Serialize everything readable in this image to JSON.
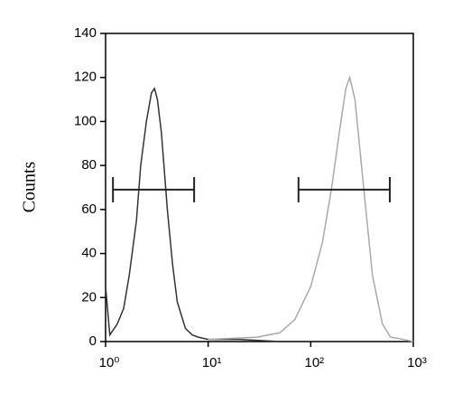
{
  "chart_data": {
    "type": "line",
    "ylabel": "Counts",
    "xlog": true,
    "xlim": [
      1,
      1000
    ],
    "ylim": [
      0,
      140
    ],
    "xticks": [
      {
        "value": 1,
        "label": "10⁰"
      },
      {
        "value": 10,
        "label": "10¹"
      },
      {
        "value": 100,
        "label": "10²"
      },
      {
        "value": 1000,
        "label": "10³"
      }
    ],
    "yticks": [
      0,
      20,
      40,
      60,
      80,
      100,
      120,
      140
    ],
    "series": [
      {
        "color": "#333333",
        "x": [
          1,
          1.1,
          1.3,
          1.5,
          1.7,
          2,
          2.2,
          2.5,
          2.8,
          3,
          3.2,
          3.5,
          4,
          4.5,
          5,
          6,
          7,
          8,
          10,
          20,
          50
        ],
        "values": [
          25,
          3,
          8,
          15,
          30,
          55,
          80,
          100,
          113,
          115,
          110,
          95,
          60,
          35,
          18,
          6,
          3,
          2,
          1,
          1,
          0
        ]
      },
      {
        "color": "#a8a8a8",
        "x": [
          10,
          30,
          50,
          70,
          100,
          130,
          160,
          190,
          220,
          240,
          270,
          320,
          400,
          500,
          600,
          800,
          1000
        ],
        "values": [
          1,
          2,
          4,
          10,
          25,
          45,
          70,
          95,
          115,
          120,
          110,
          75,
          30,
          8,
          2,
          1,
          0
        ]
      }
    ],
    "gates": [
      {
        "x": [
          1.18,
          7.3
        ],
        "y": 69
      },
      {
        "x": [
          76,
          590
        ],
        "y": 69
      }
    ]
  }
}
